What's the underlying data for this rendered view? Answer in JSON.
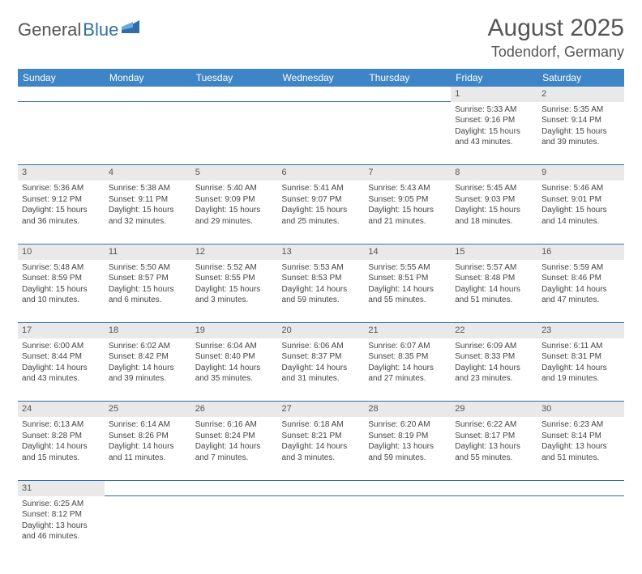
{
  "logo": {
    "part1": "General",
    "part2": "Blue"
  },
  "title": "August 2025",
  "location": "Todendorf, Germany",
  "colors": {
    "header_bg": "#3d85c6",
    "header_text": "#ffffff",
    "daynum_bg": "#e9e9e9",
    "row_divider": "#2f6fa7",
    "logo_gray": "#555555",
    "logo_blue": "#2f6fa7",
    "text": "#444444"
  },
  "typography": {
    "title_fontsize": 30,
    "location_fontsize": 18,
    "header_fontsize": 12,
    "cell_fontsize": 10,
    "daynum_fontsize": 11
  },
  "dayHeaders": [
    "Sunday",
    "Monday",
    "Tuesday",
    "Wednesday",
    "Thursday",
    "Friday",
    "Saturday"
  ],
  "weeks": [
    {
      "nums": [
        "",
        "",
        "",
        "",
        "",
        "1",
        "2"
      ],
      "cells": [
        null,
        null,
        null,
        null,
        null,
        {
          "sunrise": "Sunrise: 5:33 AM",
          "sunset": "Sunset: 9:16 PM",
          "day1": "Daylight: 15 hours",
          "day2": "and 43 minutes."
        },
        {
          "sunrise": "Sunrise: 5:35 AM",
          "sunset": "Sunset: 9:14 PM",
          "day1": "Daylight: 15 hours",
          "day2": "and 39 minutes."
        }
      ]
    },
    {
      "nums": [
        "3",
        "4",
        "5",
        "6",
        "7",
        "8",
        "9"
      ],
      "cells": [
        {
          "sunrise": "Sunrise: 5:36 AM",
          "sunset": "Sunset: 9:12 PM",
          "day1": "Daylight: 15 hours",
          "day2": "and 36 minutes."
        },
        {
          "sunrise": "Sunrise: 5:38 AM",
          "sunset": "Sunset: 9:11 PM",
          "day1": "Daylight: 15 hours",
          "day2": "and 32 minutes."
        },
        {
          "sunrise": "Sunrise: 5:40 AM",
          "sunset": "Sunset: 9:09 PM",
          "day1": "Daylight: 15 hours",
          "day2": "and 29 minutes."
        },
        {
          "sunrise": "Sunrise: 5:41 AM",
          "sunset": "Sunset: 9:07 PM",
          "day1": "Daylight: 15 hours",
          "day2": "and 25 minutes."
        },
        {
          "sunrise": "Sunrise: 5:43 AM",
          "sunset": "Sunset: 9:05 PM",
          "day1": "Daylight: 15 hours",
          "day2": "and 21 minutes."
        },
        {
          "sunrise": "Sunrise: 5:45 AM",
          "sunset": "Sunset: 9:03 PM",
          "day1": "Daylight: 15 hours",
          "day2": "and 18 minutes."
        },
        {
          "sunrise": "Sunrise: 5:46 AM",
          "sunset": "Sunset: 9:01 PM",
          "day1": "Daylight: 15 hours",
          "day2": "and 14 minutes."
        }
      ]
    },
    {
      "nums": [
        "10",
        "11",
        "12",
        "13",
        "14",
        "15",
        "16"
      ],
      "cells": [
        {
          "sunrise": "Sunrise: 5:48 AM",
          "sunset": "Sunset: 8:59 PM",
          "day1": "Daylight: 15 hours",
          "day2": "and 10 minutes."
        },
        {
          "sunrise": "Sunrise: 5:50 AM",
          "sunset": "Sunset: 8:57 PM",
          "day1": "Daylight: 15 hours",
          "day2": "and 6 minutes."
        },
        {
          "sunrise": "Sunrise: 5:52 AM",
          "sunset": "Sunset: 8:55 PM",
          "day1": "Daylight: 15 hours",
          "day2": "and 3 minutes."
        },
        {
          "sunrise": "Sunrise: 5:53 AM",
          "sunset": "Sunset: 8:53 PM",
          "day1": "Daylight: 14 hours",
          "day2": "and 59 minutes."
        },
        {
          "sunrise": "Sunrise: 5:55 AM",
          "sunset": "Sunset: 8:51 PM",
          "day1": "Daylight: 14 hours",
          "day2": "and 55 minutes."
        },
        {
          "sunrise": "Sunrise: 5:57 AM",
          "sunset": "Sunset: 8:48 PM",
          "day1": "Daylight: 14 hours",
          "day2": "and 51 minutes."
        },
        {
          "sunrise": "Sunrise: 5:59 AM",
          "sunset": "Sunset: 8:46 PM",
          "day1": "Daylight: 14 hours",
          "day2": "and 47 minutes."
        }
      ]
    },
    {
      "nums": [
        "17",
        "18",
        "19",
        "20",
        "21",
        "22",
        "23"
      ],
      "cells": [
        {
          "sunrise": "Sunrise: 6:00 AM",
          "sunset": "Sunset: 8:44 PM",
          "day1": "Daylight: 14 hours",
          "day2": "and 43 minutes."
        },
        {
          "sunrise": "Sunrise: 6:02 AM",
          "sunset": "Sunset: 8:42 PM",
          "day1": "Daylight: 14 hours",
          "day2": "and 39 minutes."
        },
        {
          "sunrise": "Sunrise: 6:04 AM",
          "sunset": "Sunset: 8:40 PM",
          "day1": "Daylight: 14 hours",
          "day2": "and 35 minutes."
        },
        {
          "sunrise": "Sunrise: 6:06 AM",
          "sunset": "Sunset: 8:37 PM",
          "day1": "Daylight: 14 hours",
          "day2": "and 31 minutes."
        },
        {
          "sunrise": "Sunrise: 6:07 AM",
          "sunset": "Sunset: 8:35 PM",
          "day1": "Daylight: 14 hours",
          "day2": "and 27 minutes."
        },
        {
          "sunrise": "Sunrise: 6:09 AM",
          "sunset": "Sunset: 8:33 PM",
          "day1": "Daylight: 14 hours",
          "day2": "and 23 minutes."
        },
        {
          "sunrise": "Sunrise: 6:11 AM",
          "sunset": "Sunset: 8:31 PM",
          "day1": "Daylight: 14 hours",
          "day2": "and 19 minutes."
        }
      ]
    },
    {
      "nums": [
        "24",
        "25",
        "26",
        "27",
        "28",
        "29",
        "30"
      ],
      "cells": [
        {
          "sunrise": "Sunrise: 6:13 AM",
          "sunset": "Sunset: 8:28 PM",
          "day1": "Daylight: 14 hours",
          "day2": "and 15 minutes."
        },
        {
          "sunrise": "Sunrise: 6:14 AM",
          "sunset": "Sunset: 8:26 PM",
          "day1": "Daylight: 14 hours",
          "day2": "and 11 minutes."
        },
        {
          "sunrise": "Sunrise: 6:16 AM",
          "sunset": "Sunset: 8:24 PM",
          "day1": "Daylight: 14 hours",
          "day2": "and 7 minutes."
        },
        {
          "sunrise": "Sunrise: 6:18 AM",
          "sunset": "Sunset: 8:21 PM",
          "day1": "Daylight: 14 hours",
          "day2": "and 3 minutes."
        },
        {
          "sunrise": "Sunrise: 6:20 AM",
          "sunset": "Sunset: 8:19 PM",
          "day1": "Daylight: 13 hours",
          "day2": "and 59 minutes."
        },
        {
          "sunrise": "Sunrise: 6:22 AM",
          "sunset": "Sunset: 8:17 PM",
          "day1": "Daylight: 13 hours",
          "day2": "and 55 minutes."
        },
        {
          "sunrise": "Sunrise: 6:23 AM",
          "sunset": "Sunset: 8:14 PM",
          "day1": "Daylight: 13 hours",
          "day2": "and 51 minutes."
        }
      ]
    },
    {
      "nums": [
        "31",
        "",
        "",
        "",
        "",
        "",
        ""
      ],
      "cells": [
        {
          "sunrise": "Sunrise: 6:25 AM",
          "sunset": "Sunset: 8:12 PM",
          "day1": "Daylight: 13 hours",
          "day2": "and 46 minutes."
        },
        null,
        null,
        null,
        null,
        null,
        null
      ],
      "last": true
    }
  ]
}
